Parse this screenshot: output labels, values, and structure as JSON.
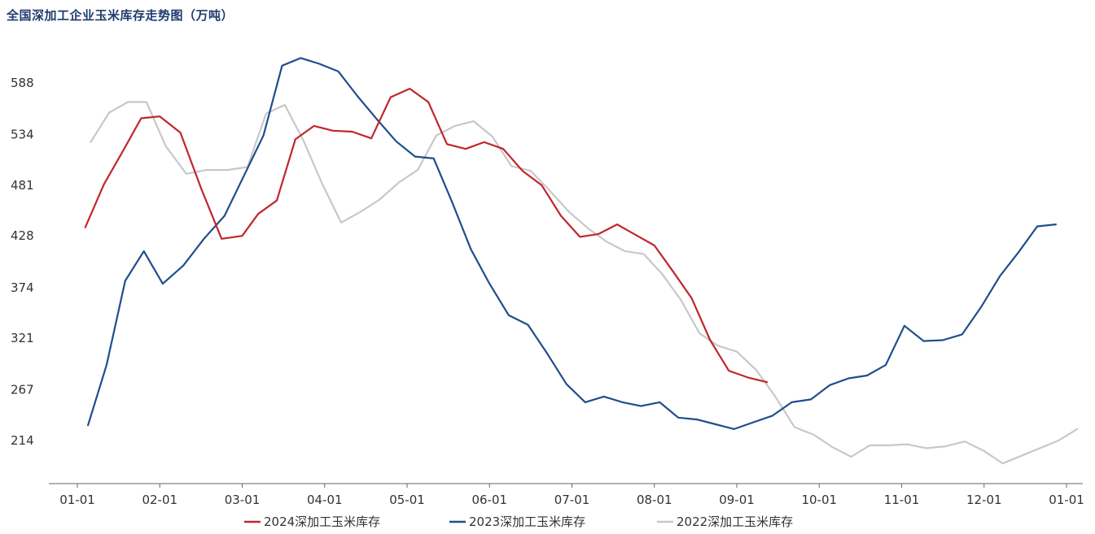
{
  "chart_data": {
    "type": "line",
    "title": "全国深加工企业玉米库存走势图（万吨）",
    "xlabel": "",
    "ylabel": "",
    "x_ticks": [
      "01-01",
      "02-01",
      "03-01",
      "04-01",
      "05-01",
      "06-01",
      "07-01",
      "08-01",
      "09-01",
      "10-01",
      "11-01",
      "12-01",
      "01-01"
    ],
    "y_ticks": [
      214,
      267,
      321,
      374,
      428,
      481,
      534,
      588
    ],
    "ylim": [
      165,
      620
    ],
    "grid": false,
    "legend_position": "bottom",
    "series": [
      {
        "name": "2024深加工玉米库存",
        "color": "#c0262d",
        "points": [
          [
            "01-04",
            437
          ],
          [
            "01-11",
            482
          ],
          [
            "01-18",
            516
          ],
          [
            "01-25",
            551
          ],
          [
            "02-01",
            553
          ],
          [
            "02-08",
            536
          ],
          [
            "02-15",
            478
          ],
          [
            "02-22",
            425
          ],
          [
            "02-29",
            428
          ],
          [
            "03-07",
            451
          ],
          [
            "03-14",
            465
          ],
          [
            "03-21",
            529
          ],
          [
            "03-28",
            543
          ],
          [
            "04-04",
            538
          ],
          [
            "04-11",
            537
          ],
          [
            "04-18",
            530
          ],
          [
            "04-25",
            573
          ],
          [
            "05-02",
            582
          ],
          [
            "05-09",
            568
          ],
          [
            "05-16",
            524
          ],
          [
            "05-23",
            519
          ],
          [
            "05-30",
            526
          ],
          [
            "06-06",
            519
          ],
          [
            "06-13",
            496
          ],
          [
            "06-20",
            481
          ],
          [
            "06-27",
            449
          ],
          [
            "07-04",
            427
          ],
          [
            "07-11",
            430
          ],
          [
            "07-18",
            440
          ],
          [
            "07-25",
            429
          ],
          [
            "08-01",
            418
          ],
          [
            "08-08",
            391
          ],
          [
            "08-15",
            363
          ],
          [
            "08-22",
            319
          ],
          [
            "08-29",
            287
          ],
          [
            "09-05",
            280
          ],
          [
            "09-12",
            275
          ]
        ]
      },
      {
        "name": "2023深加工玉米库存",
        "color": "#1f4e8c",
        "points": [
          [
            "01-05",
            230
          ],
          [
            "01-12",
            293
          ],
          [
            "01-19",
            381
          ],
          [
            "01-26",
            412
          ],
          [
            "02-02",
            378
          ],
          [
            "02-09",
            397
          ],
          [
            "02-16",
            425
          ],
          [
            "02-23",
            449
          ],
          [
            "03-02",
            493
          ],
          [
            "03-09",
            533
          ],
          [
            "03-16",
            606
          ],
          [
            "03-23",
            614
          ],
          [
            "03-30",
            608
          ],
          [
            "04-06",
            600
          ],
          [
            "04-13",
            574
          ],
          [
            "04-20",
            550
          ],
          [
            "04-27",
            527
          ],
          [
            "05-04",
            511
          ],
          [
            "05-11",
            509
          ],
          [
            "05-18",
            463
          ],
          [
            "05-25",
            414
          ],
          [
            "06-01",
            378
          ],
          [
            "06-08",
            345
          ],
          [
            "06-15",
            335
          ],
          [
            "06-22",
            305
          ],
          [
            "06-29",
            273
          ],
          [
            "07-06",
            254
          ],
          [
            "07-13",
            260
          ],
          [
            "07-20",
            254
          ],
          [
            "07-27",
            250
          ],
          [
            "08-03",
            254
          ],
          [
            "08-10",
            238
          ],
          [
            "08-17",
            236
          ],
          [
            "08-24",
            231
          ],
          [
            "08-31",
            226
          ],
          [
            "09-07",
            233
          ],
          [
            "09-14",
            240
          ],
          [
            "09-21",
            254
          ],
          [
            "09-28",
            257
          ],
          [
            "10-05",
            272
          ],
          [
            "10-12",
            279
          ],
          [
            "10-19",
            282
          ],
          [
            "10-26",
            293
          ],
          [
            "11-02",
            334
          ],
          [
            "11-09",
            318
          ],
          [
            "11-16",
            319
          ],
          [
            "11-23",
            325
          ],
          [
            "11-30",
            354
          ],
          [
            "12-07",
            386
          ],
          [
            "12-14",
            411
          ],
          [
            "12-21",
            438
          ],
          [
            "12-28",
            440
          ]
        ]
      },
      {
        "name": "2022深加工玉米库存",
        "color": "#c8c8c8",
        "points": [
          [
            "01-06",
            526
          ],
          [
            "01-13",
            557
          ],
          [
            "01-20",
            568
          ],
          [
            "01-27",
            568
          ],
          [
            "02-03",
            522
          ],
          [
            "02-10",
            493
          ],
          [
            "02-17",
            497
          ],
          [
            "02-24",
            497
          ],
          [
            "03-03",
            500
          ],
          [
            "03-10",
            556
          ],
          [
            "03-17",
            565
          ],
          [
            "03-24",
            528
          ],
          [
            "03-31",
            483
          ],
          [
            "04-07",
            442
          ],
          [
            "04-14",
            453
          ],
          [
            "04-21",
            466
          ],
          [
            "04-28",
            484
          ],
          [
            "05-05",
            497
          ],
          [
            "05-12",
            533
          ],
          [
            "05-19",
            543
          ],
          [
            "05-26",
            548
          ],
          [
            "06-02",
            532
          ],
          [
            "06-09",
            501
          ],
          [
            "06-16",
            496
          ],
          [
            "06-23",
            475
          ],
          [
            "06-30",
            453
          ],
          [
            "07-07",
            436
          ],
          [
            "07-14",
            422
          ],
          [
            "07-21",
            412
          ],
          [
            "07-28",
            409
          ],
          [
            "08-04",
            388
          ],
          [
            "08-11",
            361
          ],
          [
            "08-18",
            326
          ],
          [
            "08-25",
            313
          ],
          [
            "09-01",
            307
          ],
          [
            "09-08",
            288
          ],
          [
            "09-15",
            260
          ],
          [
            "09-22",
            228
          ],
          [
            "09-29",
            220
          ],
          [
            "10-06",
            207
          ],
          [
            "10-13",
            197
          ],
          [
            "10-20",
            209
          ],
          [
            "10-27",
            209
          ],
          [
            "11-03",
            210
          ],
          [
            "11-10",
            206
          ],
          [
            "11-17",
            208
          ],
          [
            "11-24",
            213
          ],
          [
            "12-01",
            203
          ],
          [
            "12-08",
            190
          ],
          [
            "12-15",
            198
          ],
          [
            "12-22",
            206
          ],
          [
            "12-29",
            214
          ],
          [
            "01-05",
            226
          ]
        ]
      }
    ]
  }
}
